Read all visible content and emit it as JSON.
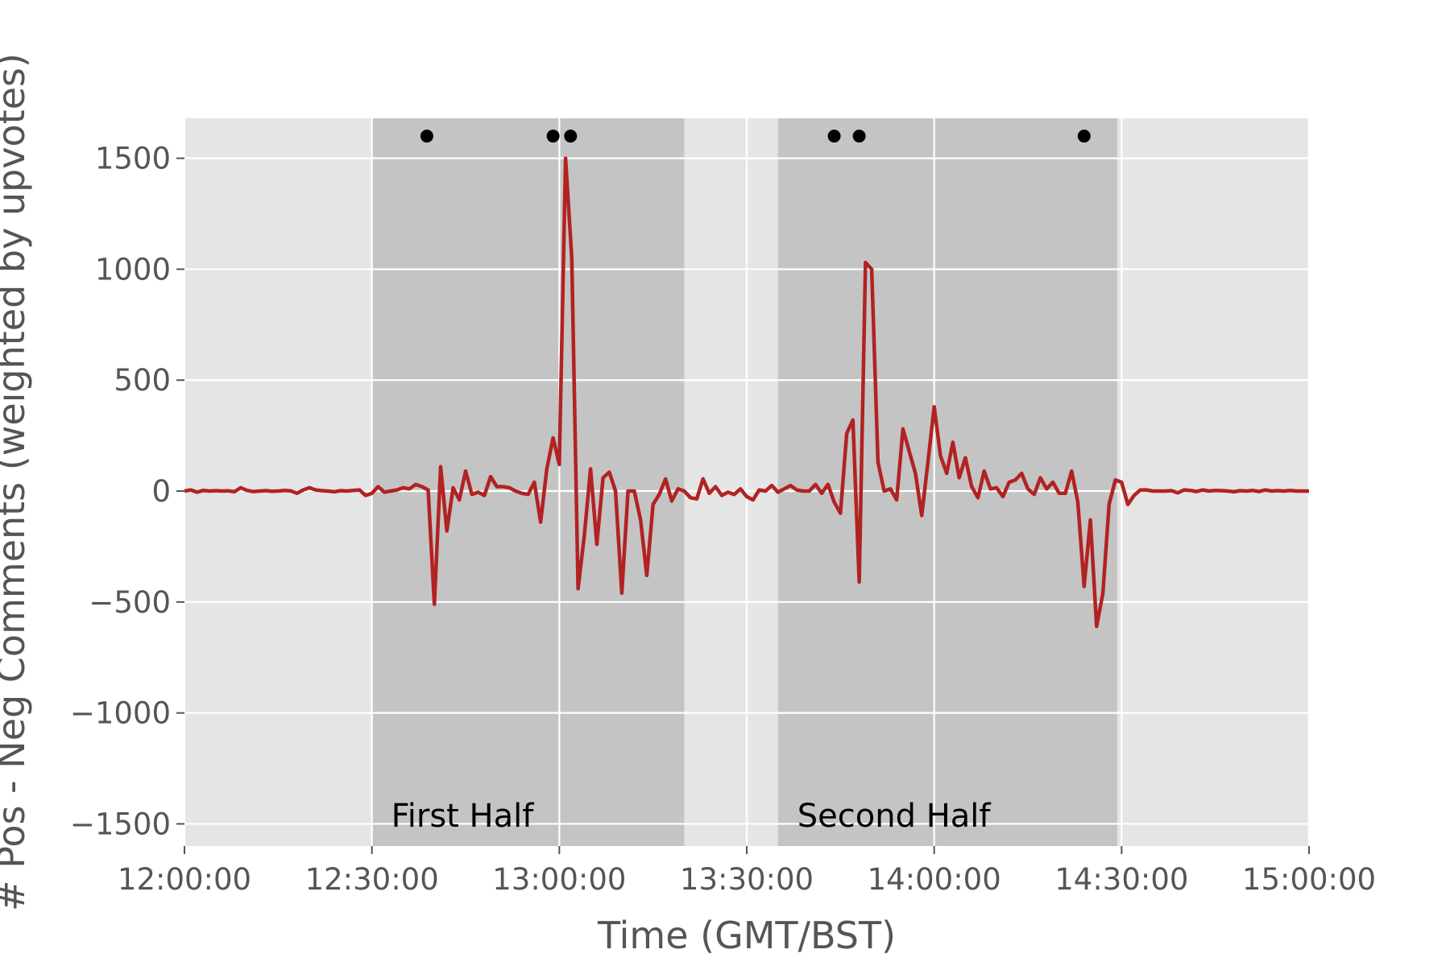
{
  "chart_data": {
    "type": "line",
    "title": "",
    "xlabel": "Time (GMT/BST)",
    "ylabel": "# Pos - Neg Comments (weighted by upvotes)",
    "x_unit": "minutes after 12:00:00",
    "xlim": [
      0,
      180
    ],
    "ylim": [
      -1600,
      1680
    ],
    "x_ticks": [
      {
        "value": 0,
        "label": "12:00:00"
      },
      {
        "value": 30,
        "label": "12:30:00"
      },
      {
        "value": 60,
        "label": "13:00:00"
      },
      {
        "value": 90,
        "label": "13:30:00"
      },
      {
        "value": 120,
        "label": "14:00:00"
      },
      {
        "value": 150,
        "label": "14:30:00"
      },
      {
        "value": 180,
        "label": "15:00:00"
      }
    ],
    "y_ticks": [
      {
        "value": 1500,
        "label": "1500"
      },
      {
        "value": 1000,
        "label": "1000"
      },
      {
        "value": 500,
        "label": "500"
      },
      {
        "value": 0,
        "label": "0"
      },
      {
        "value": -500,
        "label": "−500"
      },
      {
        "value": -1000,
        "label": "−1000"
      },
      {
        "value": -1500,
        "label": "−1500"
      }
    ],
    "grid": true,
    "colors": {
      "background": "#e5e5e5",
      "half_band": "#c4c4c4",
      "grid": "#ffffff",
      "line": "#b22222",
      "events": "#000000"
    },
    "periods": [
      {
        "label": "First Half",
        "start": 30,
        "end": 80
      },
      {
        "label": "Second Half",
        "start": 95,
        "end": 149.3
      }
    ],
    "events": {
      "y": 1600,
      "x": [
        38.8,
        59.0,
        61.8,
        104.0,
        108.0,
        144.0
      ]
    },
    "series": [
      {
        "name": "",
        "points": [
          [
            0,
            0
          ],
          [
            1,
            5
          ],
          [
            2,
            -5
          ],
          [
            3,
            3
          ],
          [
            4,
            0
          ],
          [
            5,
            2
          ],
          [
            6,
            0
          ],
          [
            7,
            1
          ],
          [
            8,
            -3
          ],
          [
            9,
            15
          ],
          [
            10,
            3
          ],
          [
            11,
            -2
          ],
          [
            12,
            0
          ],
          [
            13,
            2
          ],
          [
            14,
            -1
          ],
          [
            15,
            0
          ],
          [
            16,
            3
          ],
          [
            17,
            1
          ],
          [
            18,
            -10
          ],
          [
            19,
            5
          ],
          [
            20,
            15
          ],
          [
            21,
            5
          ],
          [
            22,
            2
          ],
          [
            23,
            0
          ],
          [
            24,
            -3
          ],
          [
            25,
            2
          ],
          [
            26,
            0
          ],
          [
            27,
            3
          ],
          [
            28,
            5
          ],
          [
            29,
            -20
          ],
          [
            30,
            -10
          ],
          [
            31,
            20
          ],
          [
            32,
            -5
          ],
          [
            33,
            0
          ],
          [
            34,
            5
          ],
          [
            35,
            15
          ],
          [
            36,
            10
          ],
          [
            37,
            30
          ],
          [
            38,
            20
          ],
          [
            39,
            5
          ],
          [
            40,
            -510
          ],
          [
            41,
            110
          ],
          [
            42,
            -180
          ],
          [
            43,
            15
          ],
          [
            44,
            -40
          ],
          [
            45,
            90
          ],
          [
            46,
            -15
          ],
          [
            47,
            -5
          ],
          [
            48,
            -20
          ],
          [
            49,
            65
          ],
          [
            50,
            20
          ],
          [
            51,
            20
          ],
          [
            52,
            15
          ],
          [
            53,
            0
          ],
          [
            54,
            -10
          ],
          [
            55,
            -15
          ],
          [
            56,
            40
          ],
          [
            57,
            -140
          ],
          [
            58,
            100
          ],
          [
            59,
            240
          ],
          [
            60,
            120
          ],
          [
            61,
            1500
          ],
          [
            62,
            1050
          ],
          [
            63,
            -440
          ],
          [
            64,
            -200
          ],
          [
            65,
            100
          ],
          [
            66,
            -240
          ],
          [
            67,
            60
          ],
          [
            68,
            85
          ],
          [
            69,
            0
          ],
          [
            70,
            -460
          ],
          [
            71,
            0
          ],
          [
            72,
            0
          ],
          [
            73,
            -130
          ],
          [
            74,
            -380
          ],
          [
            75,
            -60
          ],
          [
            76,
            -15
          ],
          [
            77,
            55
          ],
          [
            78,
            -45
          ],
          [
            79,
            10
          ],
          [
            80,
            0
          ],
          [
            81,
            -30
          ],
          [
            82,
            -35
          ],
          [
            83,
            55
          ],
          [
            84,
            -10
          ],
          [
            85,
            20
          ],
          [
            86,
            -20
          ],
          [
            87,
            -5
          ],
          [
            88,
            -15
          ],
          [
            89,
            10
          ],
          [
            90,
            -25
          ],
          [
            91,
            -40
          ],
          [
            92,
            5
          ],
          [
            93,
            0
          ],
          [
            94,
            25
          ],
          [
            95,
            -5
          ],
          [
            96,
            10
          ],
          [
            97,
            25
          ],
          [
            98,
            5
          ],
          [
            99,
            0
          ],
          [
            100,
            0
          ],
          [
            101,
            30
          ],
          [
            102,
            -10
          ],
          [
            103,
            30
          ],
          [
            104,
            -50
          ],
          [
            105,
            -100
          ],
          [
            106,
            260
          ],
          [
            107,
            320
          ],
          [
            108,
            -410
          ],
          [
            109,
            1030
          ],
          [
            110,
            1000
          ],
          [
            111,
            130
          ],
          [
            112,
            0
          ],
          [
            113,
            10
          ],
          [
            114,
            -40
          ],
          [
            115,
            280
          ],
          [
            116,
            180
          ],
          [
            117,
            80
          ],
          [
            118,
            -110
          ],
          [
            119,
            130
          ],
          [
            120,
            380
          ],
          [
            121,
            160
          ],
          [
            122,
            80
          ],
          [
            123,
            220
          ],
          [
            124,
            60
          ],
          [
            125,
            150
          ],
          [
            126,
            20
          ],
          [
            127,
            -30
          ],
          [
            128,
            90
          ],
          [
            129,
            10
          ],
          [
            130,
            15
          ],
          [
            131,
            -25
          ],
          [
            132,
            40
          ],
          [
            133,
            50
          ],
          [
            134,
            80
          ],
          [
            135,
            10
          ],
          [
            136,
            -15
          ],
          [
            137,
            60
          ],
          [
            138,
            10
          ],
          [
            139,
            40
          ],
          [
            140,
            -10
          ],
          [
            141,
            -10
          ],
          [
            142,
            90
          ],
          [
            143,
            -50
          ],
          [
            144,
            -430
          ],
          [
            145,
            -130
          ],
          [
            146,
            -610
          ],
          [
            147,
            -460
          ],
          [
            148,
            -60
          ],
          [
            149,
            50
          ],
          [
            150,
            40
          ],
          [
            151,
            -60
          ],
          [
            152,
            -20
          ],
          [
            153,
            5
          ],
          [
            154,
            5
          ],
          [
            155,
            0
          ],
          [
            156,
            0
          ],
          [
            157,
            0
          ],
          [
            158,
            2
          ],
          [
            159,
            -8
          ],
          [
            160,
            5
          ],
          [
            161,
            3
          ],
          [
            162,
            -2
          ],
          [
            163,
            5
          ],
          [
            164,
            0
          ],
          [
            165,
            3
          ],
          [
            166,
            2
          ],
          [
            167,
            0
          ],
          [
            168,
            -3
          ],
          [
            169,
            2
          ],
          [
            170,
            0
          ],
          [
            171,
            3
          ],
          [
            172,
            -2
          ],
          [
            173,
            5
          ],
          [
            174,
            0
          ],
          [
            175,
            2
          ],
          [
            176,
            0
          ],
          [
            177,
            3
          ],
          [
            178,
            0
          ],
          [
            179,
            0
          ],
          [
            180,
            0
          ]
        ]
      }
    ]
  }
}
